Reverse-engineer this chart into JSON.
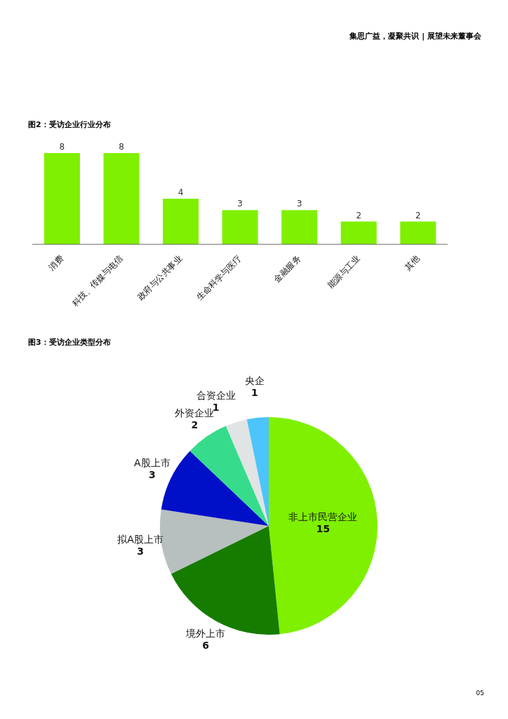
{
  "chart_data": [
    {
      "type": "bar",
      "title": "图2：受访企业行业分布",
      "annotations": [
        "集思广益，凝聚共识 | 展望未来董事会"
      ],
      "categories": [
        "消费",
        "科技、传媒与电信",
        "政府与公共事业",
        "生命科学与医疗",
        "金融服务",
        "能源与工业",
        "其他"
      ],
      "values": [
        8,
        8,
        4,
        3,
        3,
        2,
        2
      ],
      "color": "#7ff000",
      "data_labels": true
    },
    {
      "type": "pie",
      "title": "图3：受访企业类型分布",
      "annotations": [
        "05"
      ],
      "categories": [
        "非上市民营企业",
        "境外上市",
        "拟A股上市",
        "A股上市",
        "外资企业",
        "合资企业",
        "央企"
      ],
      "values": [
        15,
        6,
        3,
        3,
        2,
        1,
        1
      ],
      "colors": [
        "#7ff000",
        "#167c00",
        "#b7bfbf",
        "#0010c8",
        "#36dc8c",
        "#e0e4e4",
        "#4cc4fc"
      ],
      "data_labels": true
    }
  ]
}
